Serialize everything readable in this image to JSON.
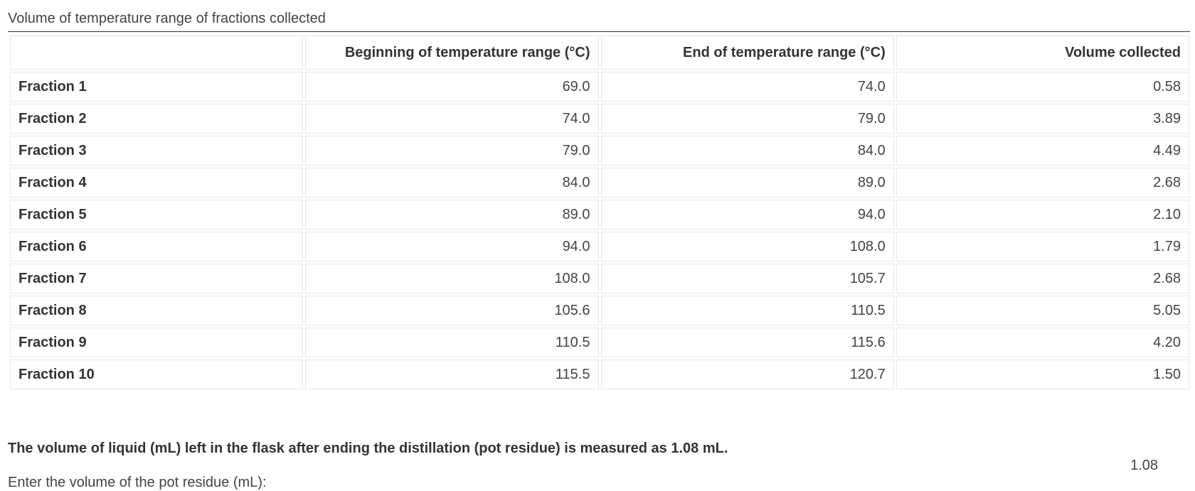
{
  "table": {
    "caption": "Volume of temperature range of fractions collected",
    "headers": [
      "",
      "Beginning of temperature range (°C)",
      "End of temperature range (°C)",
      "Volume collected"
    ],
    "rows": [
      {
        "label": "Fraction 1",
        "begin": "69.0",
        "end": "74.0",
        "volume": "0.58"
      },
      {
        "label": "Fraction 2",
        "begin": "74.0",
        "end": "79.0",
        "volume": "3.89"
      },
      {
        "label": "Fraction 3",
        "begin": "79.0",
        "end": "84.0",
        "volume": "4.49"
      },
      {
        "label": "Fraction 4",
        "begin": "84.0",
        "end": "89.0",
        "volume": "2.68"
      },
      {
        "label": "Fraction 5",
        "begin": "89.0",
        "end": "94.0",
        "volume": "2.10"
      },
      {
        "label": "Fraction 6",
        "begin": "94.0",
        "end": "108.0",
        "volume": "1.79"
      },
      {
        "label": "Fraction 7",
        "begin": "108.0",
        "end": "105.7",
        "volume": "2.68"
      },
      {
        "label": "Fraction 8",
        "begin": "105.6",
        "end": "110.5",
        "volume": "5.05"
      },
      {
        "label": "Fraction 9",
        "begin": "110.5",
        "end": "115.6",
        "volume": "4.20"
      },
      {
        "label": "Fraction 10",
        "begin": "115.5",
        "end": "120.7",
        "volume": "1.50"
      }
    ]
  },
  "residue": {
    "statement": "The volume of liquid (mL) left in the flask after ending the distillation (pot residue) is measured as 1.08 mL.",
    "value": "1.08",
    "prompt": "Enter the volume of the pot residue (mL):"
  }
}
